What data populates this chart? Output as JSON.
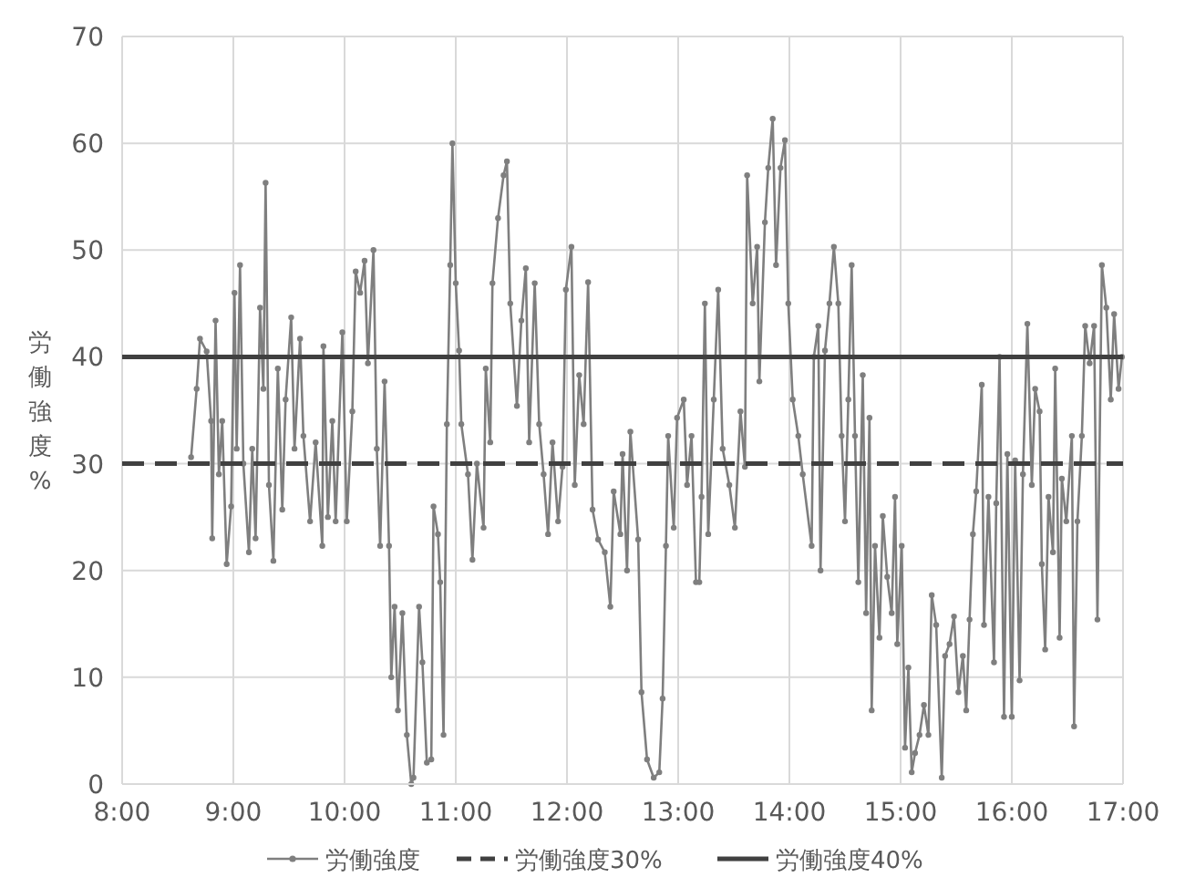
{
  "chart_data": {
    "type": "line",
    "ylabel": "労働強度%",
    "xlim": [
      8,
      17
    ],
    "xticks": [
      {
        "value": 8,
        "label": "8:00"
      },
      {
        "value": 9,
        "label": "9:00"
      },
      {
        "value": 10,
        "label": "10:00"
      },
      {
        "value": 11,
        "label": "11:00"
      },
      {
        "value": 12,
        "label": "12:00"
      },
      {
        "value": 13,
        "label": "13:00"
      },
      {
        "value": 14,
        "label": "14:00"
      },
      {
        "value": 15,
        "label": "15:00"
      },
      {
        "value": 16,
        "label": "16:00"
      },
      {
        "value": 17,
        "label": "17:00"
      }
    ],
    "ylim": [
      0,
      70
    ],
    "yticks": [
      0,
      10,
      20,
      30,
      40,
      50,
      60,
      70
    ],
    "grid": true,
    "legend": "bottom",
    "marker": "circle",
    "series": [
      {
        "name": "労働強度",
        "color": "#7f7f7f",
        "x": [
          8.62,
          8.67,
          8.7,
          8.76,
          8.8,
          8.81,
          8.84,
          8.87,
          8.9,
          8.94,
          8.98,
          9.01,
          9.03,
          9.06,
          9.09,
          9.14,
          9.17,
          9.2,
          9.24,
          9.27,
          9.29,
          9.32,
          9.36,
          9.4,
          9.44,
          9.47,
          9.52,
          9.55,
          9.6,
          9.63,
          9.69,
          9.74,
          9.8,
          9.81,
          9.85,
          9.89,
          9.92,
          9.98,
          10.02,
          10.07,
          10.1,
          10.14,
          10.18,
          10.21,
          10.26,
          10.29,
          10.32,
          10.36,
          10.4,
          10.42,
          10.45,
          10.48,
          10.52,
          10.56,
          10.6,
          10.62,
          10.67,
          10.7,
          10.74,
          10.78,
          10.8,
          10.84,
          10.86,
          10.89,
          10.92,
          10.95,
          10.97,
          11.0,
          11.03,
          11.05,
          11.11,
          11.15,
          11.19,
          11.25,
          11.27,
          11.31,
          11.33,
          11.38,
          11.43,
          11.46,
          11.49,
          11.55,
          11.59,
          11.63,
          11.66,
          11.71,
          11.75,
          11.79,
          11.83,
          11.87,
          11.92,
          11.96,
          11.99,
          12.04,
          12.07,
          12.11,
          12.15,
          12.19,
          12.23,
          12.28,
          12.34,
          12.39,
          12.42,
          12.48,
          12.5,
          12.54,
          12.57,
          12.64,
          12.67,
          12.72,
          12.78,
          12.83,
          12.86,
          12.89,
          12.91,
          12.96,
          12.99,
          13.05,
          13.08,
          13.12,
          13.16,
          13.19,
          13.21,
          13.24,
          13.27,
          13.32,
          13.36,
          13.4,
          13.46,
          13.51,
          13.56,
          13.6,
          13.62,
          13.67,
          13.71,
          13.73,
          13.78,
          13.81,
          13.85,
          13.88,
          13.92,
          13.96,
          13.99,
          14.03,
          14.08,
          14.12,
          14.2,
          14.22,
          14.26,
          14.28,
          14.32,
          14.36,
          14.4,
          14.44,
          14.47,
          14.5,
          14.53,
          14.56,
          14.59,
          14.62,
          14.66,
          14.69,
          14.72,
          14.74,
          14.77,
          14.81,
          14.84,
          14.88,
          14.92,
          14.95,
          14.97,
          15.01,
          15.04,
          15.07,
          15.1,
          15.13,
          15.17,
          15.21,
          15.25,
          15.28,
          15.32,
          15.37,
          15.4,
          15.44,
          15.48,
          15.52,
          15.56,
          15.59,
          15.62,
          15.65,
          15.68,
          15.73,
          15.75,
          15.79,
          15.84,
          15.86,
          15.89,
          15.93,
          15.96,
          16.0,
          16.03,
          16.07,
          16.1,
          16.14,
          16.18,
          16.21,
          16.25,
          16.27,
          16.3,
          16.33,
          16.37,
          16.39,
          16.43,
          16.45,
          16.49,
          16.54,
          16.56,
          16.59,
          16.63,
          16.66,
          16.7,
          16.74,
          16.77,
          16.81,
          16.85,
          16.89,
          16.92,
          16.96,
          16.99
        ],
        "values": [
          30.6,
          37,
          41.7,
          40.5,
          34,
          23,
          43.4,
          29,
          34,
          20.6,
          26,
          46,
          31.4,
          48.6,
          30,
          21.7,
          31.4,
          23,
          44.6,
          37,
          56.3,
          28,
          20.9,
          38.9,
          25.7,
          36,
          43.7,
          31.4,
          41.7,
          32.6,
          24.6,
          32,
          22.3,
          41,
          25,
          34,
          24.6,
          42.3,
          24.6,
          34.9,
          48,
          46,
          49,
          39.4,
          50,
          31.4,
          22.3,
          37.7,
          22.3,
          10,
          16.6,
          6.9,
          16,
          4.6,
          0,
          0.6,
          16.6,
          11.4,
          2,
          2.3,
          26,
          23.4,
          18.9,
          4.6,
          33.7,
          48.6,
          60,
          46.9,
          40.6,
          33.7,
          29,
          21,
          30,
          24,
          38.9,
          32,
          46.9,
          53,
          57,
          58.3,
          45,
          35.4,
          43.4,
          48.3,
          32,
          46.9,
          33.7,
          29,
          23.4,
          32,
          24.6,
          29.7,
          46.3,
          50.3,
          28,
          38.3,
          33.7,
          47,
          25.7,
          22.9,
          21.7,
          16.6,
          27.4,
          23.4,
          30.9,
          20,
          33,
          22.9,
          8.6,
          2.3,
          0.6,
          1.1,
          8,
          22.3,
          32.6,
          24,
          34.3,
          36,
          28,
          32.6,
          18.9,
          18.9,
          26.9,
          45,
          23.4,
          36,
          46.3,
          31.4,
          28,
          24,
          34.9,
          29.7,
          57,
          45,
          50.3,
          37.7,
          52.6,
          57.7,
          62.3,
          48.6,
          57.7,
          60.3,
          45,
          36,
          32.6,
          29,
          22.3,
          40,
          42.9,
          20,
          40.6,
          45,
          50.3,
          45,
          32.6,
          24.6,
          36,
          48.6,
          32.6,
          18.9,
          38.3,
          16,
          34.3,
          6.9,
          22.3,
          13.7,
          25.1,
          19.4,
          16,
          26.9,
          13.1,
          22.3,
          3.4,
          10.9,
          1.1,
          2.9,
          4.6,
          7.4,
          4.6,
          17.7,
          14.9,
          0.6,
          12,
          13.1,
          15.7,
          8.6,
          12,
          6.9,
          15.4,
          23.4,
          27.4,
          37.4,
          14.9,
          26.9,
          11.4,
          26.3,
          40,
          6.3,
          30.9,
          6.3,
          30.3,
          9.7,
          29,
          43.1,
          28,
          37,
          34.9,
          20.6,
          12.6,
          26.9,
          21.7,
          38.9,
          13.7,
          28.6,
          24.6,
          32.6,
          5.4,
          24.6,
          32.6,
          42.9,
          39.4,
          42.9,
          15.4,
          48.6,
          44.6,
          36,
          44,
          37,
          40
        ]
      }
    ],
    "ref_lines": [
      {
        "axis": "y",
        "value": 30,
        "label": "労働強度30%",
        "color": "#404040",
        "line_style": "dashed"
      },
      {
        "axis": "y",
        "value": 40,
        "label": "労働強度40%",
        "color": "#404040",
        "line_style": "solid"
      }
    ]
  }
}
